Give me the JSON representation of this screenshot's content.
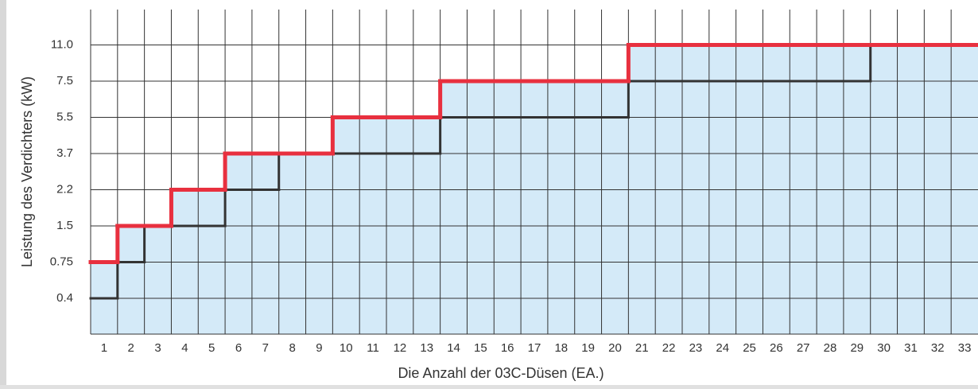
{
  "chart_data": {
    "type": "step",
    "x_label": "Die Anzahl der 03C-Düsen (EA.)",
    "y_label": "Leistung des Verdichters (kW)",
    "categories": [
      "1",
      "2",
      "3",
      "4",
      "5",
      "6",
      "7",
      "8",
      "9",
      "10",
      "11",
      "12",
      "13",
      "14",
      "15",
      "16",
      "17",
      "18",
      "19",
      "20",
      "21",
      "22",
      "23",
      "24",
      "25",
      "26",
      "27",
      "28",
      "29",
      "30",
      "31",
      "32",
      "33"
    ],
    "yticks": [
      0.4,
      0.75,
      1.5,
      2.2,
      3.7,
      5.5,
      7.5,
      {
        "value": 11,
        "label": "11.0"
      }
    ],
    "grid": true,
    "fill_color": "#d4eaf8",
    "series": [
      {
        "color": "#e8303f",
        "values": [
          0.75,
          1.5,
          1.5,
          2.2,
          2.2,
          3.7,
          3.7,
          3.7,
          3.7,
          5.5,
          5.5,
          5.5,
          5.5,
          7.5,
          7.5,
          7.5,
          7.5,
          7.5,
          7.5,
          7.5,
          11,
          11,
          11,
          11,
          11,
          11,
          11,
          11,
          11,
          11,
          11,
          11,
          11
        ]
      },
      {
        "color": "#333333",
        "values": [
          0.4,
          0.75,
          1.5,
          1.5,
          1.5,
          2.2,
          2.2,
          3.7,
          3.7,
          3.7,
          3.7,
          3.7,
          3.7,
          5.5,
          5.5,
          5.5,
          5.5,
          5.5,
          5.5,
          5.5,
          7.5,
          7.5,
          7.5,
          7.5,
          7.5,
          7.5,
          7.5,
          7.5,
          7.5,
          11,
          11,
          11,
          11
        ]
      }
    ]
  }
}
